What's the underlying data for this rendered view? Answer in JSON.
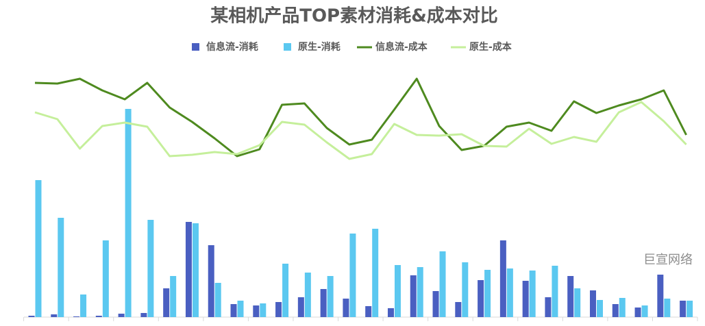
{
  "chart_data": {
    "type": "bar",
    "title": "某相机产品TOP素材消耗&成本对比",
    "watermark": "巨宣网络",
    "categories": [
      null,
      null,
      null,
      null,
      null,
      null,
      null,
      null,
      null,
      null,
      null,
      null,
      null,
      null,
      null,
      null,
      null,
      null,
      null,
      null,
      null,
      null,
      null,
      null,
      null,
      null,
      null,
      null,
      null,
      null
    ],
    "ylim": [
      0,
      373
    ],
    "series": [
      {
        "name": "信息流-消耗",
        "type": "bar",
        "color": "#4a5fc1",
        "values": [
          2,
          4,
          1,
          2,
          5,
          6,
          42,
          139,
          105,
          19,
          17,
          22,
          29,
          41,
          27,
          16,
          13,
          61,
          38,
          22,
          54,
          112,
          53,
          29,
          60,
          39,
          19,
          14,
          62,
          24
        ]
      },
      {
        "name": "原生-消耗",
        "type": "bar",
        "color": "#5bc8f0",
        "values": [
          200,
          145,
          33,
          112,
          304,
          142,
          60,
          137,
          50,
          24,
          20,
          78,
          65,
          60,
          122,
          129,
          76,
          73,
          96,
          80,
          69,
          71,
          68,
          75,
          42,
          25,
          28,
          17,
          27,
          24
        ]
      },
      {
        "name": "信息流-成本",
        "type": "line",
        "color": "#4e8a1f",
        "values": [
          342,
          341,
          348,
          331,
          318,
          342,
          306,
          285,
          261,
          235,
          245,
          310,
          312,
          276,
          252,
          259,
          303,
          348,
          279,
          244,
          250,
          278,
          284,
          272,
          315,
          298,
          309,
          318,
          331,
          266
        ]
      },
      {
        "name": "原生-成本",
        "type": "line",
        "color": "#c5ef9b",
        "values": [
          299,
          289,
          246,
          279,
          284,
          278,
          235,
          237,
          241,
          238,
          251,
          285,
          281,
          255,
          231,
          238,
          282,
          266,
          265,
          267,
          250,
          249,
          275,
          253,
          263,
          256,
          299,
          314,
          286,
          252
        ]
      }
    ]
  }
}
